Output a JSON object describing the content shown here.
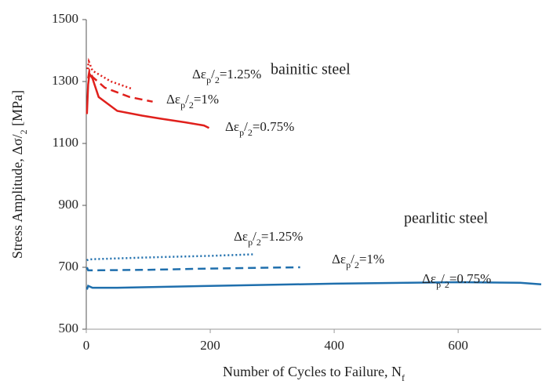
{
  "chart_data": {
    "type": "line",
    "xlabel": [
      "Number of Cycles to Failure, N",
      "f"
    ],
    "ylabel": [
      "Stress Amplitude, Δσ/",
      "2",
      " [MPa]"
    ],
    "xlim": [
      0,
      734
    ],
    "xticks": [
      0,
      200,
      400,
      600
    ],
    "ylim": [
      500,
      1500
    ],
    "yticks": [
      500,
      700,
      900,
      1100,
      1300,
      1500
    ],
    "grid": false,
    "groups": [
      {
        "text": "bainitic steel",
        "color": "#e0201c"
      },
      {
        "text": "pearlitic steel",
        "color": "#1f6fad"
      }
    ],
    "series": [
      {
        "label": [
          "Δε",
          "p",
          "/",
          "2",
          "=0.75%"
        ],
        "color": "#e0201c",
        "dash": "solid",
        "x": [
          1,
          3,
          5,
          10,
          20,
          50,
          90,
          120,
          160,
          190,
          198
        ],
        "values": [
          1195,
          1290,
          1325,
          1310,
          1250,
          1205,
          1190,
          1180,
          1168,
          1158,
          1150
        ]
      },
      {
        "label": [
          "Δε",
          "p",
          "/",
          "2",
          "=1%"
        ],
        "color": "#e0201c",
        "dash": "dashed",
        "x": [
          3,
          5,
          10,
          30,
          70,
          107
        ],
        "values": [
          1310,
          1335,
          1315,
          1280,
          1250,
          1235
        ]
      },
      {
        "label": [
          "Δε",
          "p",
          "/",
          "2",
          "=1.25%"
        ],
        "color": "#e0201c",
        "dash": "dotted",
        "x": [
          2,
          4,
          10,
          40,
          73
        ],
        "values": [
          1340,
          1365,
          1335,
          1300,
          1277
        ]
      },
      {
        "label": [
          "Δε",
          "p",
          "/",
          "2",
          "=0.75%"
        ],
        "color": "#1f6fad",
        "dash": "solid",
        "x": [
          1,
          3,
          10,
          50,
          200,
          400,
          600,
          700,
          734
        ],
        "values": [
          628,
          640,
          634,
          634,
          640,
          647,
          652,
          650,
          645
        ]
      },
      {
        "label": [
          "Δε",
          "p",
          "/",
          "2",
          "=1%"
        ],
        "color": "#1f6fad",
        "dash": "dashed",
        "x": [
          1,
          3,
          10,
          100,
          200,
          300,
          345
        ],
        "values": [
          700,
          690,
          690,
          692,
          696,
          699,
          700
        ]
      },
      {
        "label": [
          "Δε",
          "p",
          "/",
          "2",
          "=1.25%"
        ],
        "color": "#1f6fad",
        "dash": "dotted",
        "x": [
          1,
          3,
          10,
          100,
          200,
          272
        ],
        "values": [
          722,
          725,
          726,
          732,
          737,
          742
        ]
      }
    ]
  }
}
